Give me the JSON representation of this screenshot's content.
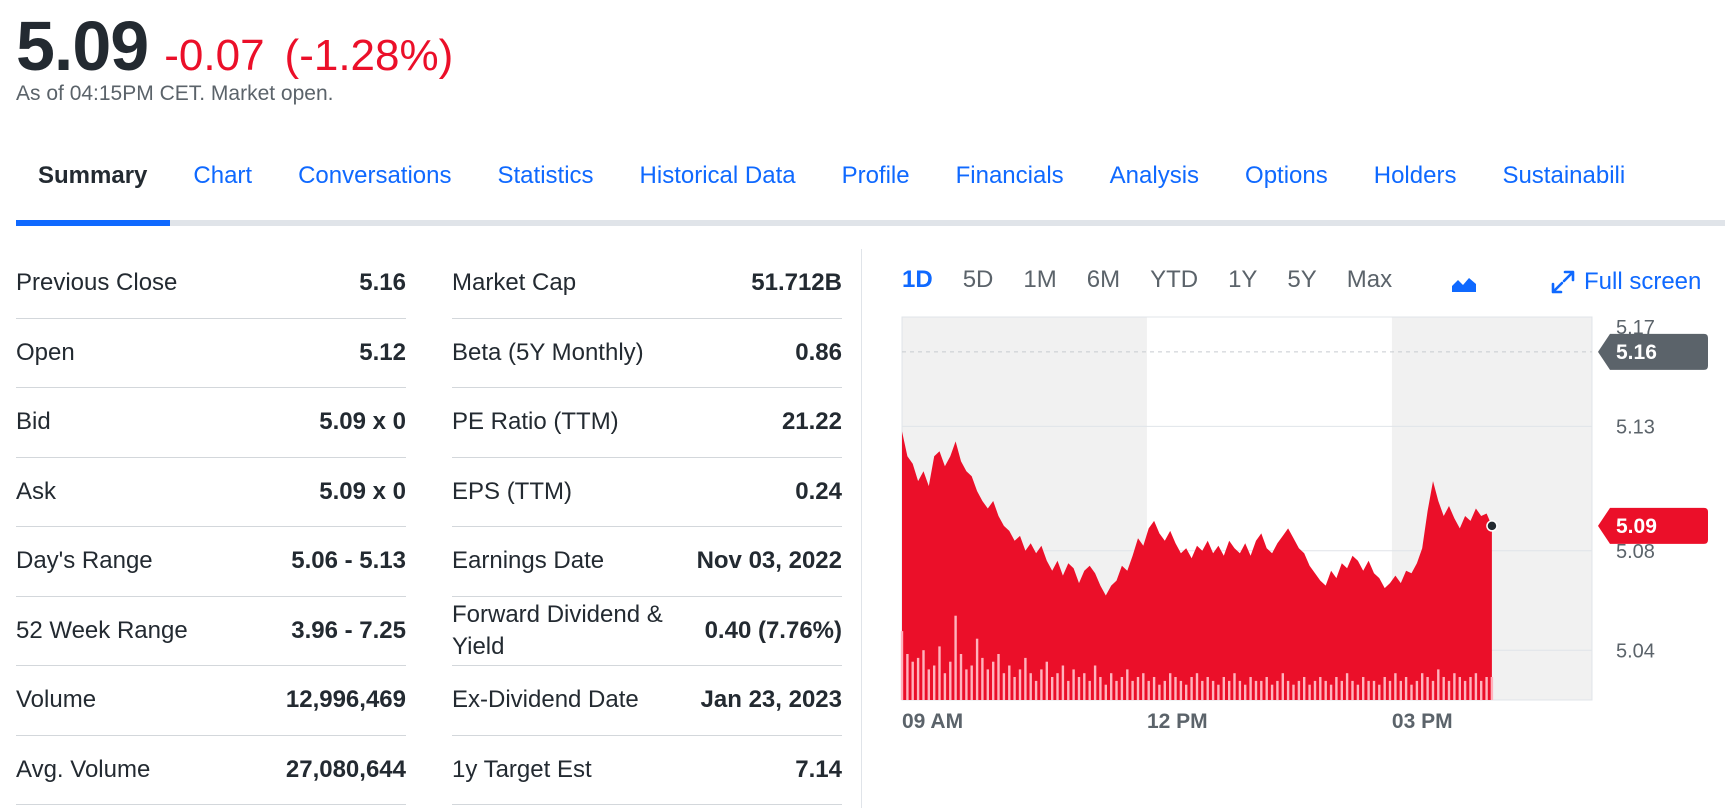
{
  "quote": {
    "price": "5.09",
    "change": "-0.07",
    "change_pct": "(-1.28%)",
    "as_of": "As of 04:15PM CET. Market open."
  },
  "tabs": [
    {
      "label": "Summary",
      "active": true
    },
    {
      "label": "Chart"
    },
    {
      "label": "Conversations"
    },
    {
      "label": "Statistics"
    },
    {
      "label": "Historical Data"
    },
    {
      "label": "Profile"
    },
    {
      "label": "Financials"
    },
    {
      "label": "Analysis"
    },
    {
      "label": "Options"
    },
    {
      "label": "Holders"
    },
    {
      "label": "Sustainabili"
    }
  ],
  "stats_left": [
    {
      "label": "Previous Close",
      "value": "5.16"
    },
    {
      "label": "Open",
      "value": "5.12"
    },
    {
      "label": "Bid",
      "value": "5.09 x 0"
    },
    {
      "label": "Ask",
      "value": "5.09 x 0"
    },
    {
      "label": "Day's Range",
      "value": "5.06 - 5.13"
    },
    {
      "label": "52 Week Range",
      "value": "3.96 - 7.25"
    },
    {
      "label": "Volume",
      "value": "12,996,469"
    },
    {
      "label": "Avg. Volume",
      "value": "27,080,644"
    }
  ],
  "stats_right": [
    {
      "label": "Market Cap",
      "value": "51.712B"
    },
    {
      "label": "Beta (5Y Monthly)",
      "value": "0.86"
    },
    {
      "label": "PE Ratio (TTM)",
      "value": "21.22"
    },
    {
      "label": "EPS (TTM)",
      "value": "0.24"
    },
    {
      "label": "Earnings Date",
      "value": "Nov 03, 2022"
    },
    {
      "label": "Forward Dividend & Yield",
      "value": "0.40 (7.76%)"
    },
    {
      "label": "Ex-Dividend Date",
      "value": "Jan 23, 2023"
    },
    {
      "label": "1y Target Est",
      "value": "7.14"
    }
  ],
  "chart_controls": {
    "ranges": [
      {
        "label": "1D",
        "active": true
      },
      {
        "label": "5D"
      },
      {
        "label": "1M"
      },
      {
        "label": "6M"
      },
      {
        "label": "YTD"
      },
      {
        "label": "1Y"
      },
      {
        "label": "5Y"
      },
      {
        "label": "Max"
      }
    ],
    "chart_type_icon": "area-chart-icon",
    "fullscreen_label": "Full screen",
    "fullscreen_icon": "expand-arrows-icon"
  },
  "colors": {
    "accent": "#0f69ff",
    "negative": "#eb0f29",
    "text": "#232a31",
    "muted": "#5b636a",
    "prev_close_badge": "#5b636a"
  },
  "chart_data": {
    "type": "area",
    "x_ticks": [
      "09 AM",
      "12 PM",
      "03 PM"
    ],
    "y_ticks": [
      "5.17",
      "5.13",
      "5.08",
      "5.04"
    ],
    "ylim": [
      5.02,
      5.174
    ],
    "previous_close": "5.16",
    "current_price": "5.09",
    "series": [
      {
        "values": [
          5.128,
          5.118,
          5.115,
          5.108,
          5.112,
          5.106,
          5.118,
          5.12,
          5.114,
          5.118,
          5.124,
          5.116,
          5.112,
          5.11,
          5.104,
          5.1,
          5.097,
          5.1,
          5.094,
          5.09,
          5.088,
          5.084,
          5.086,
          5.08,
          5.083,
          5.079,
          5.082,
          5.076,
          5.072,
          5.076,
          5.07,
          5.075,
          5.073,
          5.067,
          5.072,
          5.074,
          5.071,
          5.066,
          5.062,
          5.066,
          5.068,
          5.074,
          5.072,
          5.078,
          5.085,
          5.082,
          5.089,
          5.092,
          5.087,
          5.084,
          5.088,
          5.083,
          5.079,
          5.081,
          5.077,
          5.082,
          5.08,
          5.084,
          5.079,
          5.082,
          5.078,
          5.084,
          5.081,
          5.079,
          5.083,
          5.078,
          5.084,
          5.087,
          5.081,
          5.079,
          5.083,
          5.086,
          5.089,
          5.085,
          5.081,
          5.079,
          5.074,
          5.071,
          5.068,
          5.066,
          5.072,
          5.069,
          5.075,
          5.073,
          5.078,
          5.076,
          5.072,
          5.076,
          5.071,
          5.069,
          5.065,
          5.067,
          5.07,
          5.067,
          5.072,
          5.071,
          5.075,
          5.081,
          5.096,
          5.108,
          5.1,
          5.094,
          5.098,
          5.093,
          5.089,
          5.094,
          5.092,
          5.097,
          5.094,
          5.095,
          5.09
        ],
        "volume": [
          0.18,
          0.12,
          0.1,
          0.11,
          0.13,
          0.08,
          0.09,
          0.14,
          0.07,
          0.1,
          0.22,
          0.12,
          0.08,
          0.09,
          0.16,
          0.11,
          0.08,
          0.1,
          0.12,
          0.07,
          0.09,
          0.06,
          0.08,
          0.11,
          0.07,
          0.05,
          0.08,
          0.1,
          0.06,
          0.07,
          0.09,
          0.05,
          0.08,
          0.06,
          0.07,
          0.05,
          0.09,
          0.06,
          0.04,
          0.07,
          0.05,
          0.06,
          0.08,
          0.05,
          0.06,
          0.07,
          0.05,
          0.06,
          0.04,
          0.05,
          0.07,
          0.06,
          0.05,
          0.04,
          0.06,
          0.07,
          0.05,
          0.06,
          0.05,
          0.04,
          0.06,
          0.05,
          0.07,
          0.05,
          0.04,
          0.06,
          0.05,
          0.05,
          0.06,
          0.04,
          0.05,
          0.07,
          0.05,
          0.04,
          0.05,
          0.06,
          0.04,
          0.05,
          0.06,
          0.05,
          0.04,
          0.06,
          0.05,
          0.07,
          0.05,
          0.04,
          0.06,
          0.05,
          0.05,
          0.04,
          0.06,
          0.05,
          0.07,
          0.05,
          0.06,
          0.04,
          0.05,
          0.07,
          0.06,
          0.05,
          0.08,
          0.06,
          0.05,
          0.07,
          0.06,
          0.05,
          0.06,
          0.07,
          0.05,
          0.06,
          0.06
        ]
      }
    ]
  }
}
